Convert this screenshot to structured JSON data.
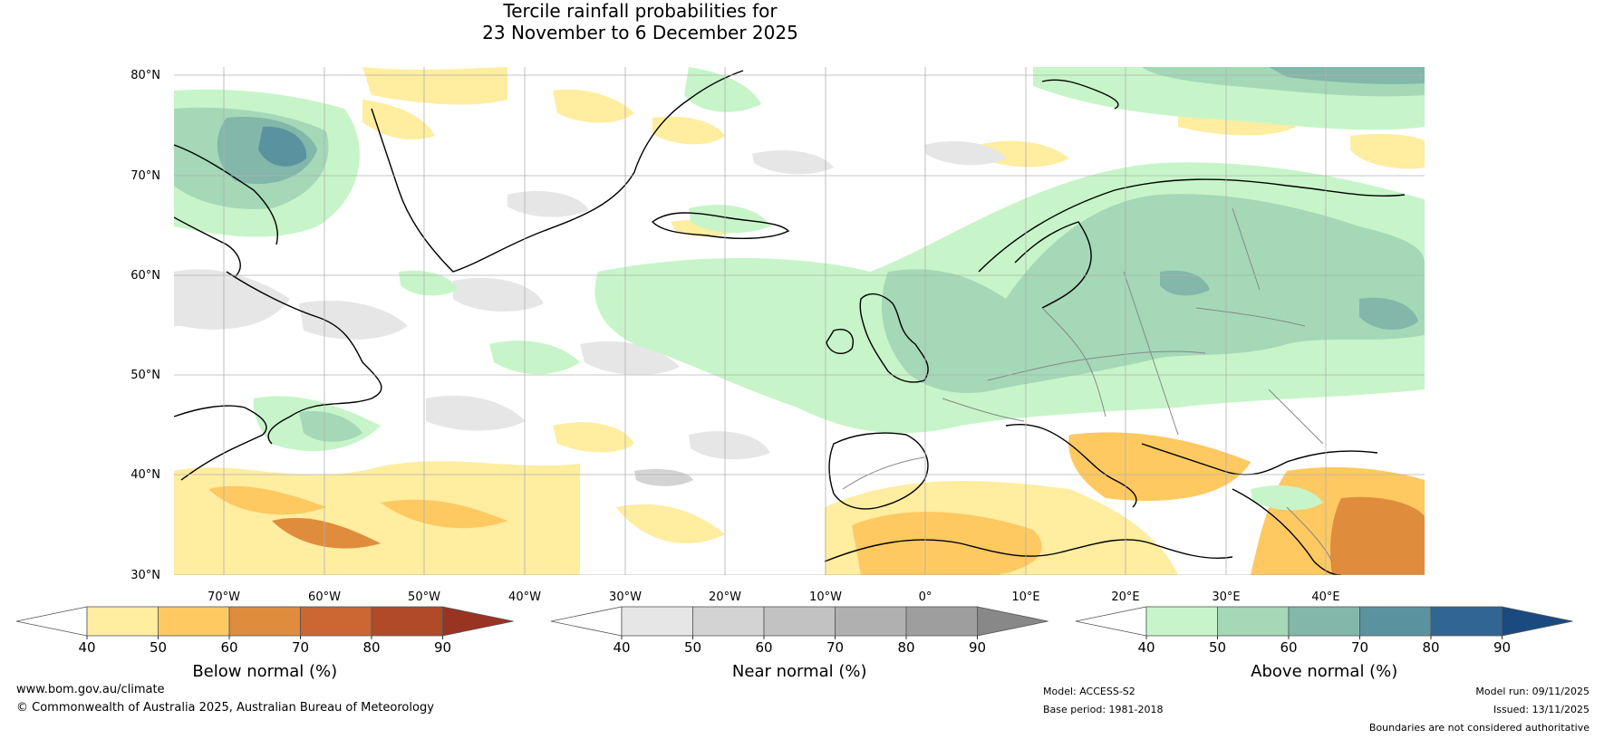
{
  "title": {
    "line1": "Tercile rainfall probabilities for",
    "line2": "23 November to 6 December 2025"
  },
  "map": {
    "lat_labels": [
      "80°N",
      "70°N",
      "60°N",
      "50°N",
      "40°N",
      "30°N"
    ],
    "lon_labels": [
      "70°W",
      "60°W",
      "50°W",
      "40°W",
      "30°W",
      "20°W",
      "10°W",
      "0°",
      "10°E",
      "20°E",
      "30°E",
      "40°E"
    ]
  },
  "legends": [
    {
      "label": "Below normal (%)",
      "ticks": [
        "40",
        "50",
        "60",
        "70",
        "80",
        "90"
      ],
      "colors": [
        "#ffffff",
        "#ffeda0",
        "#fec961",
        "#e08c3d",
        "#cc6633",
        "#b04a28",
        "#993322"
      ]
    },
    {
      "label": "Near normal (%)",
      "ticks": [
        "40",
        "50",
        "60",
        "70",
        "80",
        "90"
      ],
      "colors": [
        "#ffffff",
        "#e6e6e6",
        "#d3d3d3",
        "#c2c2c2",
        "#b0b0b0",
        "#9e9e9e",
        "#888888"
      ]
    },
    {
      "label": "Above normal (%)",
      "ticks": [
        "40",
        "50",
        "60",
        "70",
        "80",
        "90"
      ],
      "colors": [
        "#ffffff",
        "#c7f5c9",
        "#a4d8b7",
        "#82b7a9",
        "#5b92a0",
        "#316592",
        "#1a4a80"
      ]
    }
  ],
  "footer": {
    "website": "www.bom.gov.au/climate",
    "copyright": "© Commonwealth of Australia 2025, Australian Bureau of Meteorology",
    "model": "Model: ACCESS-S2",
    "base_period": "Base period: 1981-2018",
    "model_run": "Model run: 09/11/2025",
    "issued": "Issued: 13/11/2025",
    "disclaimer": "Boundaries are not considered authoritative"
  }
}
